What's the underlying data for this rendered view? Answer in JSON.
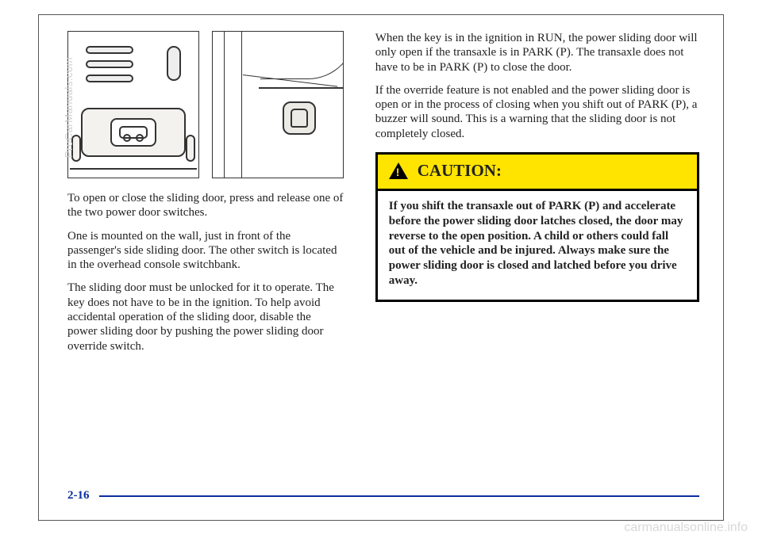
{
  "page": {
    "number": "2-16",
    "watermark_vertical": "ProCarManuals.com",
    "watermark_corner": "carmanualsonline.info"
  },
  "left_column": {
    "p1": "To open or close the sliding door, press and release one of the two power door switches.",
    "p2": "One is mounted on the wall, just in front of the passenger's side sliding door. The other switch is located in the overhead console switchbank.",
    "p3": "The sliding door must be unlocked for it to operate. The key does not have to be in the ignition. To help avoid accidental operation of the sliding door, disable the power sliding door by pushing the power sliding door override switch."
  },
  "right_column": {
    "p1": "When the key is in the ignition in RUN, the power sliding door will only open if the transaxle is in PARK (P). The transaxle does not have to be in PARK (P) to close the door.",
    "p2": "If the override feature is not enabled and the power sliding door is open or in the process of closing when you shift out of PARK (P), a buzzer will sound. This is a warning that the sliding door is not completely closed."
  },
  "caution": {
    "title": "CAUTION:",
    "body": "If you shift the transaxle out of PARK (P) and accelerate before the power sliding door latches closed, the door may reverse to the open position. A child or others could fall out of the vehicle and be injured. Always make sure the power sliding door is closed and latched before you drive away.",
    "colors": {
      "header_bg": "#ffe400",
      "border": "#000000"
    }
  }
}
